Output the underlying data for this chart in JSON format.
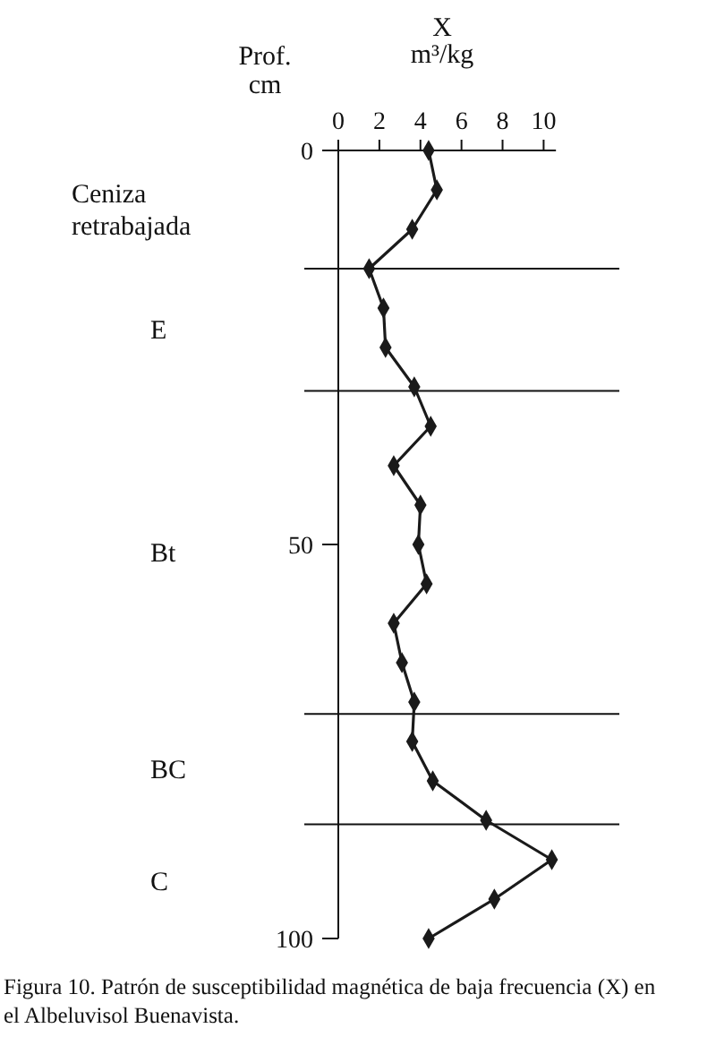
{
  "chart_data": {
    "type": "line",
    "xlabel": "X\nm³/kg",
    "ylabel": "Prof.\ncm",
    "x": [
      0,
      5,
      10,
      15,
      20,
      25,
      30,
      35,
      40,
      45,
      50,
      55,
      60,
      65,
      70,
      75,
      80,
      85,
      90,
      95,
      100
    ],
    "series": [
      {
        "color": "#1a1a1a",
        "values": [
          4.4,
          4.8,
          3.6,
          1.5,
          2.2,
          2.3,
          3.7,
          4.5,
          2.7,
          4.0,
          3.9,
          4.3,
          2.7,
          3.1,
          3.7,
          3.6,
          4.6,
          7.2,
          10.4,
          7.6,
          4.4
        ]
      }
    ],
    "orientation": "horizontal",
    "marker": "diamond",
    "line_style": "solid",
    "xlim": [
      0,
      10.6
    ],
    "xticks": [
      0,
      2,
      4,
      6,
      8,
      10
    ],
    "ylim": [
      100,
      0
    ],
    "yticks": [
      0,
      50,
      100
    ],
    "grid": false,
    "ref_lines": [
      {
        "axis": "y",
        "value": 15
      },
      {
        "axis": "y",
        "value": 30.5
      },
      {
        "axis": "y",
        "value": 71.5
      },
      {
        "axis": "y",
        "value": 85.5
      }
    ],
    "annotations": [
      "Ceniza retrabajada",
      "E",
      "Bt",
      "BC",
      "C",
      "Figura 10. Patrón de susceptibilidad magnética de baja frecuencia (X) en el Albeluvisol Buenavista."
    ]
  }
}
